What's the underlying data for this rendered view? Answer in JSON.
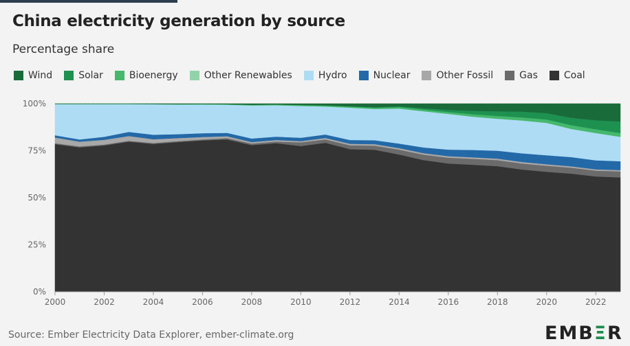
{
  "title": "China electricity generation by source",
  "subtitle": "Percentage share",
  "source": "Source: Ember Electricity Data Explorer, ember-climate.org",
  "logo": "EMBER",
  "legend": [
    {
      "name": "Wind",
      "color": "#1a6b3a"
    },
    {
      "name": "Solar",
      "color": "#1e9150"
    },
    {
      "name": "Bioenergy",
      "color": "#45b86e"
    },
    {
      "name": "Other Renewables",
      "color": "#93d3aa"
    },
    {
      "name": "Hydro",
      "color": "#aedcf5"
    },
    {
      "name": "Nuclear",
      "color": "#2369a8"
    },
    {
      "name": "Other Fossil",
      "color": "#a8a8a8"
    },
    {
      "name": "Gas",
      "color": "#6b6b6b"
    },
    {
      "name": "Coal",
      "color": "#333333"
    }
  ],
  "chart_data": {
    "type": "area",
    "stacked": true,
    "title": "China electricity generation by source",
    "subtitle": "Percentage share",
    "x": [
      2000,
      2001,
      2002,
      2003,
      2004,
      2005,
      2006,
      2007,
      2008,
      2009,
      2010,
      2011,
      2012,
      2013,
      2014,
      2015,
      2016,
      2017,
      2018,
      2019,
      2020,
      2021,
      2022,
      2023
    ],
    "xticks": [
      2000,
      2002,
      2004,
      2006,
      2008,
      2010,
      2012,
      2014,
      2016,
      2018,
      2020,
      2022
    ],
    "ytick_labels": [
      "0%",
      "25%",
      "50%",
      "75%",
      "100%"
    ],
    "yticks": [
      0,
      25,
      50,
      75,
      100
    ],
    "ylim": [
      0,
      100
    ],
    "grid": true,
    "legend_position": "top",
    "series": [
      {
        "name": "Coal",
        "color": "#333333",
        "values": [
          78.5,
          76.8,
          77.8,
          79.8,
          78.6,
          79.6,
          80.5,
          81.0,
          78.0,
          79.0,
          77.5,
          79.2,
          75.8,
          75.5,
          73.0,
          70.0,
          68.2,
          67.5,
          66.8,
          65.0,
          63.8,
          62.8,
          61.3,
          60.8
        ]
      },
      {
        "name": "Gas",
        "color": "#6b6b6b",
        "values": [
          0.5,
          0.5,
          0.5,
          0.5,
          0.5,
          0.5,
          0.5,
          0.7,
          0.8,
          0.9,
          1.9,
          1.8,
          2.1,
          2.2,
          2.6,
          2.9,
          3.1,
          3.2,
          3.2,
          3.2,
          3.2,
          3.2,
          3.1,
          3.2
        ]
      },
      {
        "name": "Other Fossil",
        "color": "#a8a8a8",
        "values": [
          3.0,
          2.5,
          2.5,
          2.5,
          2.0,
          1.6,
          1.3,
          1.0,
          0.8,
          0.8,
          0.7,
          0.8,
          0.8,
          0.8,
          0.8,
          0.8,
          0.8,
          0.8,
          0.8,
          0.8,
          0.8,
          0.7,
          0.7,
          0.7
        ]
      },
      {
        "name": "Nuclear",
        "color": "#2369a8",
        "values": [
          1.2,
          1.2,
          1.6,
          2.2,
          2.4,
          2.1,
          2.0,
          1.8,
          1.9,
          1.8,
          1.8,
          1.8,
          2.0,
          2.1,
          2.4,
          3.0,
          3.5,
          3.9,
          4.2,
          4.6,
          4.8,
          4.9,
          4.8,
          4.7
        ]
      },
      {
        "name": "Hydro",
        "color": "#aedcf5",
        "values": [
          16.6,
          18.8,
          17.4,
          14.8,
          16.2,
          15.8,
          15.3,
          15.0,
          17.6,
          16.7,
          16.9,
          14.9,
          17.2,
          16.6,
          18.6,
          19.3,
          19.0,
          17.7,
          17.0,
          17.5,
          17.2,
          15.0,
          14.5,
          13.0
        ]
      },
      {
        "name": "Other Renewables",
        "color": "#93d3aa",
        "values": [
          0.0,
          0.0,
          0.0,
          0.0,
          0.0,
          0.0,
          0.0,
          0.0,
          0.0,
          0.0,
          0.0,
          0.0,
          0.0,
          0.0,
          0.0,
          0.0,
          0.0,
          0.0,
          0.0,
          0.0,
          0.0,
          0.0,
          0.0,
          0.0
        ]
      },
      {
        "name": "Bioenergy",
        "color": "#45b86e",
        "values": [
          0.1,
          0.1,
          0.1,
          0.1,
          0.1,
          0.1,
          0.2,
          0.2,
          0.3,
          0.4,
          0.5,
          0.5,
          0.6,
          0.7,
          0.8,
          0.9,
          1.0,
          1.3,
          1.5,
          1.6,
          1.8,
          2.0,
          2.0,
          2.0
        ]
      },
      {
        "name": "Solar",
        "color": "#1e9150",
        "values": [
          0.0,
          0.0,
          0.0,
          0.0,
          0.0,
          0.0,
          0.0,
          0.0,
          0.0,
          0.0,
          0.0,
          0.1,
          0.1,
          0.2,
          0.4,
          0.7,
          1.1,
          1.8,
          2.5,
          3.1,
          3.4,
          3.9,
          4.8,
          6.2
        ]
      },
      {
        "name": "Wind",
        "color": "#1a6b3a",
        "values": [
          0.1,
          0.1,
          0.1,
          0.1,
          0.2,
          0.3,
          0.2,
          0.3,
          0.6,
          0.4,
          0.7,
          0.9,
          1.4,
          1.9,
          1.4,
          2.4,
          3.3,
          3.8,
          4.0,
          4.2,
          5.0,
          7.5,
          8.8,
          9.4
        ]
      }
    ]
  }
}
